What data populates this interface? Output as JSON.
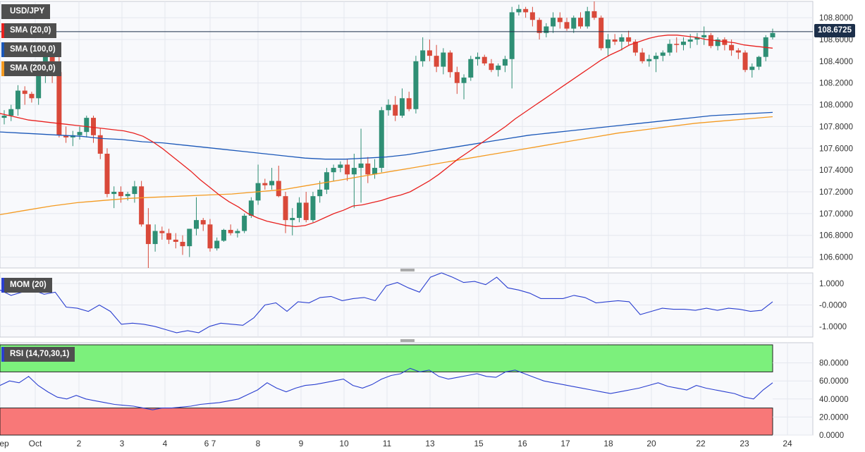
{
  "chart_data": [
    {
      "type": "candlestick",
      "title": "USD/JPY",
      "legend": [
        {
          "label": "SMA (20,0)",
          "color": "#e8201e"
        },
        {
          "label": "SMA (100,0)",
          "color": "#1a57b8"
        },
        {
          "label": "SMA (200,0)",
          "color": "#f49a20"
        }
      ],
      "last_price": "108.6725",
      "ylim": [
        106.5,
        108.95
      ],
      "y_ticks": [
        "108.8000",
        "108.6000",
        "108.4000",
        "108.2000",
        "108.0000",
        "107.8000",
        "107.6000",
        "107.4000",
        "107.2000",
        "107.0000",
        "106.8000",
        "106.6000"
      ],
      "x_ticks": [
        "Sep",
        "Oct",
        "2",
        "3",
        "4",
        "6 7",
        "8",
        "9",
        "10",
        "11",
        "13",
        "15",
        "16",
        "17",
        "18",
        "20",
        "22",
        "23",
        "24"
      ],
      "grid": true,
      "candles_ohlc": [
        [
          107.88,
          107.95,
          107.82,
          107.9
        ],
        [
          107.9,
          108.0,
          107.85,
          107.96
        ],
        [
          107.96,
          108.18,
          107.9,
          108.13
        ],
        [
          108.13,
          108.17,
          108.0,
          108.1
        ],
        [
          108.1,
          108.12,
          108.02,
          108.06
        ],
        [
          108.06,
          108.35,
          108.0,
          108.3
        ],
        [
          108.3,
          108.48,
          108.2,
          108.44
        ],
        [
          108.44,
          108.52,
          108.2,
          108.3
        ],
        [
          108.3,
          108.45,
          107.7,
          107.72
        ],
        [
          107.72,
          107.8,
          107.65,
          107.7
        ],
        [
          107.7,
          107.76,
          107.62,
          107.72
        ],
        [
          107.72,
          107.8,
          107.68,
          107.75
        ],
        [
          107.75,
          107.9,
          107.7,
          107.88
        ],
        [
          107.88,
          107.9,
          107.65,
          107.72
        ],
        [
          107.72,
          107.78,
          107.5,
          107.55
        ],
        [
          107.55,
          107.6,
          107.15,
          107.18
        ],
        [
          107.18,
          107.25,
          107.05,
          107.2
        ],
        [
          107.2,
          107.25,
          107.1,
          107.16
        ],
        [
          107.16,
          107.2,
          107.12,
          107.18
        ],
        [
          107.18,
          107.3,
          107.1,
          107.25
        ],
        [
          107.25,
          107.3,
          106.88,
          106.9
        ],
        [
          106.9,
          107.05,
          106.5,
          106.72
        ],
        [
          106.72,
          106.9,
          106.65,
          106.84
        ],
        [
          106.84,
          106.88,
          106.76,
          106.82
        ],
        [
          106.82,
          106.86,
          106.72,
          106.76
        ],
        [
          106.76,
          106.82,
          106.68,
          106.74
        ],
        [
          106.74,
          106.8,
          106.62,
          106.7
        ],
        [
          106.7,
          106.86,
          106.6,
          106.86
        ],
        [
          106.86,
          107.15,
          106.8,
          106.94
        ],
        [
          106.94,
          106.96,
          106.84,
          106.9
        ],
        [
          106.9,
          106.95,
          106.65,
          106.68
        ],
        [
          106.68,
          106.78,
          106.66,
          106.75
        ],
        [
          106.75,
          106.86,
          106.74,
          106.85
        ],
        [
          106.85,
          106.9,
          106.8,
          106.82
        ],
        [
          106.82,
          106.86,
          106.78,
          106.84
        ],
        [
          106.84,
          107.0,
          106.82,
          106.98
        ],
        [
          106.98,
          107.15,
          106.96,
          107.12
        ],
        [
          107.12,
          107.45,
          107.08,
          107.28
        ],
        [
          107.28,
          107.32,
          107.22,
          107.26
        ],
        [
          107.26,
          107.42,
          107.22,
          107.3
        ],
        [
          107.3,
          107.44,
          107.15,
          107.16
        ],
        [
          107.16,
          107.2,
          106.82,
          106.94
        ],
        [
          106.94,
          107.05,
          106.8,
          106.96
        ],
        [
          106.96,
          107.15,
          106.92,
          107.1
        ],
        [
          107.1,
          107.2,
          106.92,
          106.94
        ],
        [
          106.94,
          107.2,
          106.92,
          107.16
        ],
        [
          107.16,
          107.3,
          107.1,
          107.22
        ],
        [
          107.22,
          107.42,
          107.18,
          107.38
        ],
        [
          107.38,
          107.45,
          107.3,
          107.42
        ],
        [
          107.42,
          107.48,
          107.38,
          107.45
        ],
        [
          107.45,
          107.5,
          107.3,
          107.36
        ],
        [
          107.36,
          107.55,
          107.05,
          107.42
        ],
        [
          107.42,
          107.78,
          107.1,
          107.46
        ],
        [
          107.46,
          107.52,
          107.28,
          107.36
        ],
        [
          107.36,
          107.5,
          107.32,
          107.42
        ],
        [
          107.42,
          107.98,
          107.38,
          107.95
        ],
        [
          107.95,
          108.05,
          107.9,
          108.0
        ],
        [
          108.0,
          108.08,
          107.85,
          107.9
        ],
        [
          107.9,
          108.15,
          107.88,
          108.06
        ],
        [
          108.06,
          108.12,
          107.94,
          107.96
        ],
        [
          107.96,
          108.45,
          107.92,
          108.4
        ],
        [
          108.4,
          108.62,
          108.35,
          108.5
        ],
        [
          108.5,
          108.6,
          108.4,
          108.45
        ],
        [
          108.45,
          108.55,
          108.3,
          108.35
        ],
        [
          108.35,
          108.52,
          108.28,
          108.48
        ],
        [
          108.48,
          108.5,
          108.25,
          108.3
        ],
        [
          108.3,
          108.35,
          108.1,
          108.2
        ],
        [
          108.2,
          108.28,
          108.05,
          108.25
        ],
        [
          108.25,
          108.45,
          108.22,
          108.42
        ],
        [
          108.42,
          108.48,
          108.36,
          108.44
        ],
        [
          108.44,
          108.46,
          108.36,
          108.38
        ],
        [
          108.38,
          108.42,
          108.3,
          108.32
        ],
        [
          108.32,
          108.38,
          108.26,
          108.36
        ],
        [
          108.36,
          108.45,
          108.3,
          108.42
        ],
        [
          108.42,
          108.9,
          108.15,
          108.85
        ],
        [
          108.85,
          108.92,
          108.82,
          108.88
        ],
        [
          108.88,
          108.9,
          108.8,
          108.85
        ],
        [
          108.85,
          108.9,
          108.72,
          108.78
        ],
        [
          108.78,
          108.8,
          108.6,
          108.66
        ],
        [
          108.66,
          108.75,
          108.62,
          108.72
        ],
        [
          108.72,
          108.85,
          108.66,
          108.8
        ],
        [
          108.8,
          108.85,
          108.7,
          108.76
        ],
        [
          108.76,
          108.8,
          108.68,
          108.7
        ],
        [
          108.7,
          108.82,
          108.66,
          108.8
        ],
        [
          108.8,
          108.85,
          108.7,
          108.72
        ],
        [
          108.72,
          108.9,
          108.7,
          108.86
        ],
        [
          108.86,
          108.95,
          108.78,
          108.8
        ],
        [
          108.8,
          108.82,
          108.5,
          108.52
        ],
        [
          108.52,
          108.65,
          108.45,
          108.6
        ],
        [
          108.6,
          108.65,
          108.55,
          108.58
        ],
        [
          108.58,
          108.65,
          108.5,
          108.62
        ],
        [
          108.62,
          108.68,
          108.55,
          108.58
        ],
        [
          108.58,
          108.6,
          108.45,
          108.48
        ],
        [
          108.48,
          108.52,
          108.38,
          108.4
        ],
        [
          108.4,
          108.46,
          108.35,
          108.42
        ],
        [
          108.42,
          108.48,
          108.3,
          108.45
        ],
        [
          108.45,
          108.5,
          108.4,
          108.48
        ],
        [
          108.48,
          108.6,
          108.45,
          108.56
        ],
        [
          108.56,
          108.62,
          108.48,
          108.55
        ],
        [
          108.55,
          108.62,
          108.5,
          108.58
        ],
        [
          108.58,
          108.65,
          108.52,
          108.6
        ],
        [
          108.6,
          108.66,
          108.55,
          108.62
        ],
        [
          108.62,
          108.72,
          108.55,
          108.64
        ],
        [
          108.64,
          108.66,
          108.52,
          108.54
        ],
        [
          108.54,
          108.62,
          108.5,
          108.6
        ],
        [
          108.6,
          108.62,
          108.5,
          108.55
        ],
        [
          108.55,
          108.6,
          108.45,
          108.5
        ],
        [
          108.5,
          108.52,
          108.42,
          108.48
        ],
        [
          108.48,
          108.5,
          108.3,
          108.32
        ],
        [
          108.32,
          108.38,
          108.25,
          108.35
        ],
        [
          108.35,
          108.45,
          108.32,
          108.44
        ],
        [
          108.44,
          108.64,
          108.4,
          108.62
        ],
        [
          108.62,
          108.7,
          108.6,
          108.66
        ]
      ],
      "sma20": [
        107.92,
        107.9,
        107.88,
        107.86,
        107.85,
        107.84,
        107.83,
        107.82,
        107.81,
        107.8,
        107.79,
        107.78,
        107.77,
        107.76,
        107.74,
        107.71,
        107.66,
        107.6,
        107.53,
        107.46,
        107.39,
        107.31,
        107.24,
        107.17,
        107.11,
        107.06,
        107.0,
        106.96,
        106.93,
        106.91,
        106.89,
        106.88,
        106.89,
        106.92,
        106.96,
        107.0,
        107.03,
        107.07,
        107.08,
        107.1,
        107.12,
        107.15,
        107.17,
        107.2,
        107.25,
        107.3,
        107.36,
        107.43,
        107.5,
        107.56,
        107.62,
        107.68,
        107.74,
        107.8,
        107.87,
        107.93,
        107.99,
        108.05,
        108.11,
        108.17,
        108.23,
        108.29,
        108.35,
        108.41,
        108.46,
        108.5,
        108.55,
        108.58,
        108.61,
        108.63,
        108.64,
        108.64,
        108.63,
        108.62,
        108.6,
        108.59,
        108.58,
        108.57,
        108.55,
        108.54,
        108.53,
        108.52
      ],
      "sma100": [
        107.75,
        107.74,
        107.73,
        107.72,
        107.71,
        107.69,
        107.68,
        107.66,
        107.65,
        107.63,
        107.61,
        107.59,
        107.57,
        107.55,
        107.53,
        107.51,
        107.5,
        107.5,
        107.51,
        107.52,
        107.54,
        107.57,
        107.6,
        107.63,
        107.66,
        107.69,
        107.72,
        107.74,
        107.76,
        107.78,
        107.8,
        107.82,
        107.84,
        107.86,
        107.88,
        107.9,
        107.91,
        107.92,
        107.93
      ],
      "sma200": [
        106.99,
        107.03,
        107.07,
        107.1,
        107.12,
        107.14,
        107.15,
        107.16,
        107.17,
        107.18,
        107.2,
        107.22,
        107.26,
        107.3,
        107.34,
        107.38,
        107.42,
        107.46,
        107.5,
        107.54,
        107.58,
        107.62,
        107.66,
        107.7,
        107.74,
        107.77,
        107.8,
        107.83,
        107.85,
        107.87,
        107.89
      ]
    },
    {
      "type": "line",
      "title": "MOM (20)",
      "ylim": [
        -1.5,
        1.5
      ],
      "y_ticks": [
        "1.0000",
        "-0.0000",
        "-1.0000"
      ],
      "values": [
        0.7,
        0.45,
        0.6,
        0.7,
        0.5,
        0.6,
        -0.1,
        -0.15,
        -0.3,
        0.0,
        -0.3,
        -0.9,
        -0.85,
        -0.9,
        -1.0,
        -1.15,
        -1.3,
        -1.2,
        -1.3,
        -1.0,
        -0.85,
        -0.9,
        -0.95,
        -0.6,
        0.0,
        0.1,
        -0.3,
        0.15,
        0.1,
        0.35,
        0.4,
        0.2,
        0.3,
        0.35,
        0.2,
        0.9,
        1.05,
        0.8,
        0.6,
        1.3,
        1.5,
        1.3,
        1.05,
        1.1,
        0.95,
        1.3,
        0.8,
        0.7,
        0.55,
        0.3,
        0.3,
        0.3,
        0.45,
        0.35,
        0.1,
        0.15,
        0.2,
        0.15,
        -0.45,
        -0.3,
        -0.15,
        -0.2,
        -0.2,
        -0.25,
        -0.15,
        -0.25,
        -0.15,
        -0.2,
        -0.3,
        -0.25,
        0.15
      ]
    },
    {
      "type": "line",
      "title": "RSI (14,70,30,1)",
      "ylim": [
        0,
        100
      ],
      "y_ticks": [
        "80.0000",
        "60.0000",
        "40.0000",
        "20.0000",
        "0.0000"
      ],
      "zones": {
        "overbought": 70,
        "oversold": 30
      },
      "values": [
        55,
        60,
        58,
        65,
        55,
        48,
        42,
        40,
        44,
        40,
        38,
        36,
        34,
        33,
        32,
        30,
        28,
        30,
        30,
        31,
        32,
        34,
        35,
        36,
        38,
        40,
        45,
        50,
        58,
        52,
        48,
        52,
        55,
        56,
        58,
        60,
        62,
        55,
        52,
        56,
        62,
        66,
        68,
        74,
        70,
        72,
        65,
        62,
        64,
        66,
        68,
        65,
        64,
        70,
        72,
        68,
        64,
        60,
        58,
        56,
        54,
        52,
        50,
        48,
        46,
        48,
        50,
        52,
        55,
        58,
        54,
        52,
        50,
        55,
        52,
        50,
        48,
        46,
        42,
        40,
        50,
        58
      ],
      "rsi_shift_note": ""
    }
  ]
}
